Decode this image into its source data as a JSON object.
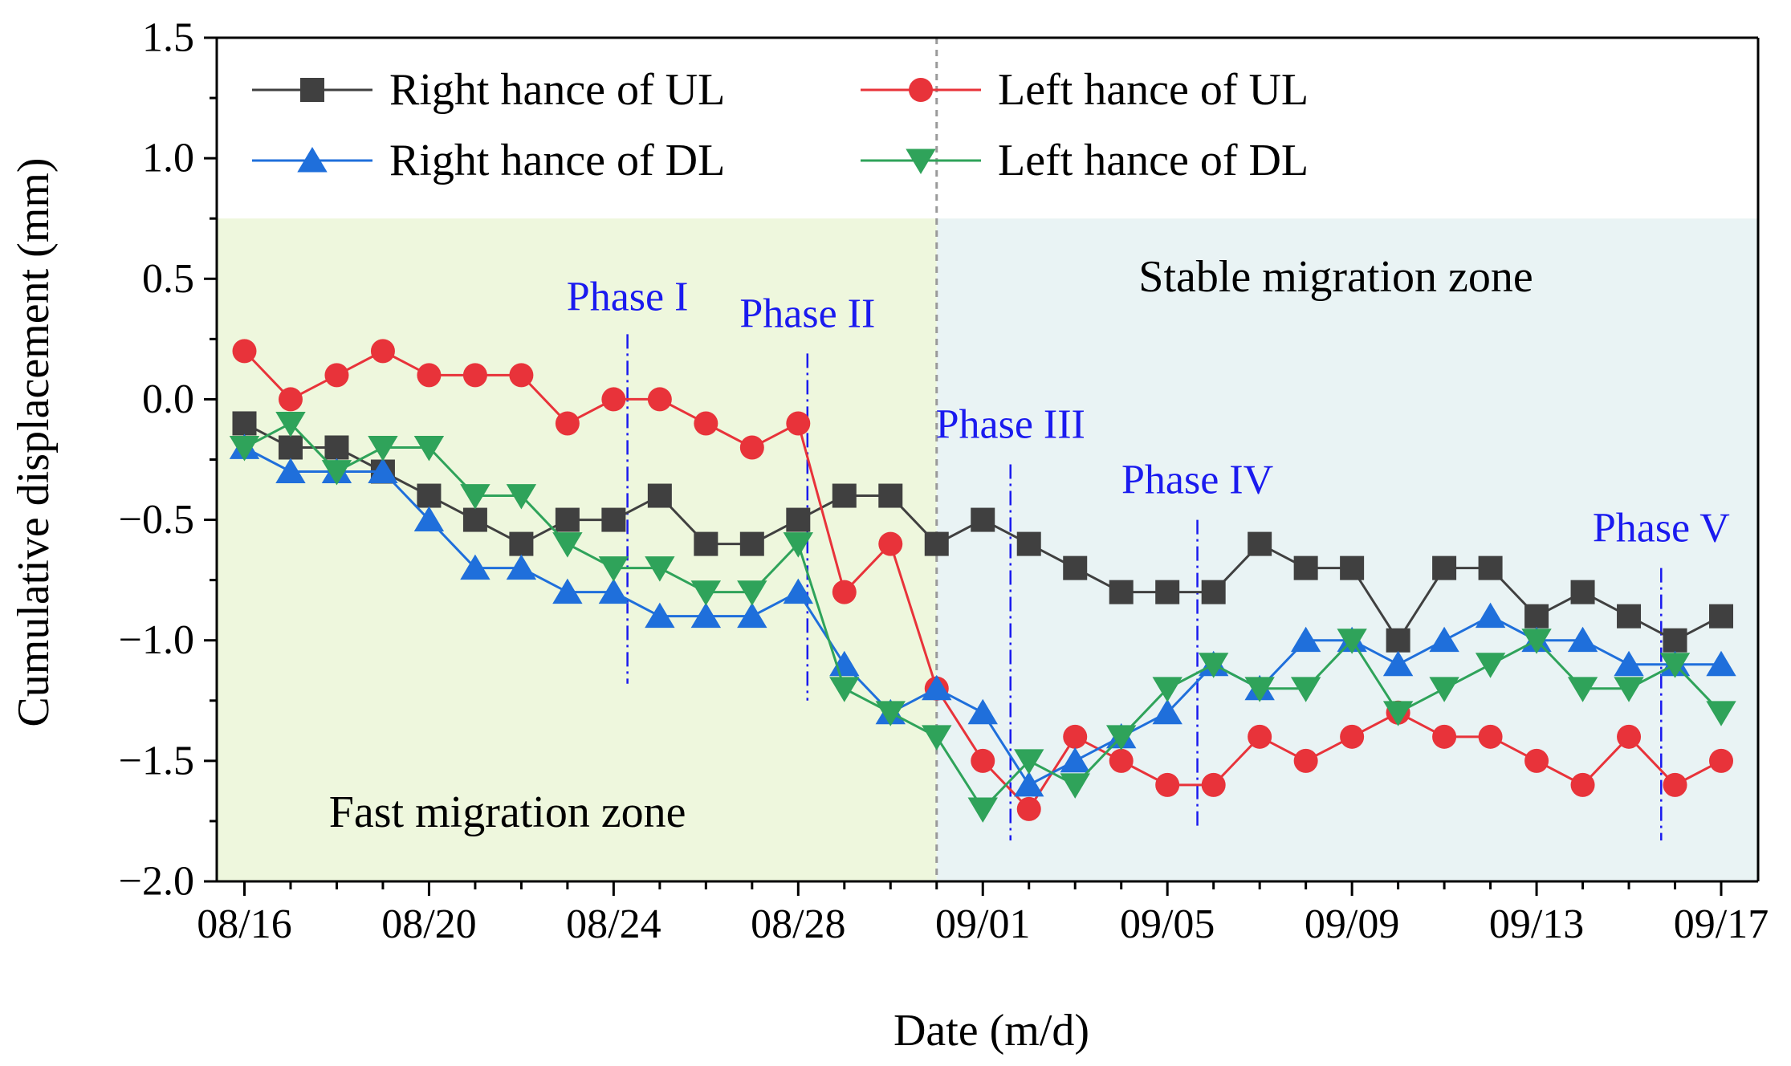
{
  "chart_data": {
    "type": "line",
    "xlabel": "Date (m/d)",
    "ylabel": "Cumulative displacement (mm)",
    "ylim": [
      -2.0,
      1.5
    ],
    "xlim": [
      -0.6,
      32.8
    ],
    "yticks": [
      -2.0,
      -1.5,
      -1.0,
      -0.5,
      0.0,
      0.5,
      1.0,
      1.5
    ],
    "ytick_labels": [
      "−2.0",
      "−1.5",
      "−1.0",
      "−0.5",
      "0.0",
      "0.5",
      "1.0",
      "1.5"
    ],
    "xticks": [
      0,
      4,
      8,
      12,
      16,
      20,
      24,
      28,
      32
    ],
    "xtick_labels": [
      "08/16",
      "08/20",
      "08/24",
      "08/28",
      "09/01",
      "09/05",
      "09/09",
      "09/13",
      "09/17"
    ],
    "x": [
      0,
      1,
      2,
      3,
      4,
      5,
      6,
      7,
      8,
      9,
      10,
      11,
      12,
      13,
      14,
      15,
      16,
      17,
      18,
      19,
      20,
      21,
      22,
      23,
      24,
      25,
      26,
      27,
      28,
      29,
      30,
      31,
      32
    ],
    "series": [
      {
        "name": "Right hance of UL",
        "color": "#404040",
        "marker": "square",
        "values": [
          -0.1,
          -0.2,
          -0.2,
          -0.3,
          -0.4,
          -0.5,
          -0.6,
          -0.5,
          -0.5,
          -0.4,
          -0.6,
          -0.6,
          -0.5,
          -0.4,
          -0.4,
          -0.6,
          -0.5,
          -0.6,
          -0.7,
          -0.8,
          -0.8,
          -0.8,
          -0.6,
          -0.7,
          -0.7,
          -1.0,
          -0.7,
          -0.7,
          -0.9,
          -0.8,
          -0.9,
          -1.0,
          -0.9
        ]
      },
      {
        "name": "Left hance of UL",
        "color": "#e8333a",
        "marker": "circle",
        "values": [
          0.2,
          0.0,
          0.1,
          0.2,
          0.1,
          0.1,
          0.1,
          -0.1,
          0.0,
          0.0,
          -0.1,
          -0.2,
          -0.1,
          -0.8,
          -0.6,
          -1.2,
          -1.5,
          -1.7,
          -1.4,
          -1.5,
          -1.6,
          -1.6,
          -1.4,
          -1.5,
          -1.4,
          -1.3,
          -1.4,
          -1.4,
          -1.5,
          -1.6,
          -1.4,
          -1.6,
          -1.5
        ]
      },
      {
        "name": "Right hance of DL",
        "color": "#1f6fdb",
        "marker": "triangle-up",
        "values": [
          -0.2,
          -0.3,
          -0.3,
          -0.3,
          -0.5,
          -0.7,
          -0.7,
          -0.8,
          -0.8,
          -0.9,
          -0.9,
          -0.9,
          -0.8,
          -1.1,
          -1.3,
          -1.2,
          -1.3,
          -1.6,
          -1.5,
          -1.4,
          -1.3,
          -1.1,
          -1.2,
          -1.0,
          -1.0,
          -1.1,
          -1.0,
          -0.9,
          -1.0,
          -1.0,
          -1.1,
          -1.1,
          -1.1
        ]
      },
      {
        "name": "Left hance of DL",
        "color": "#2fa35a",
        "marker": "triangle-down",
        "values": [
          -0.2,
          -0.1,
          -0.3,
          -0.2,
          -0.2,
          -0.4,
          -0.4,
          -0.6,
          -0.7,
          -0.7,
          -0.8,
          -0.8,
          -0.6,
          -1.2,
          -1.3,
          -1.4,
          -1.7,
          -1.5,
          -1.6,
          -1.4,
          -1.2,
          -1.1,
          -1.2,
          -1.2,
          -1.0,
          -1.3,
          -1.2,
          -1.1,
          -1.0,
          -1.2,
          -1.2,
          -1.1,
          -1.3
        ]
      }
    ],
    "zones": [
      {
        "label": "Fast migration zone",
        "x_from": -0.6,
        "x_to": 15.0,
        "y_top": 0.75,
        "color": "#eef7dd"
      },
      {
        "label": "Stable migration zone",
        "x_from": 15.0,
        "x_to": 32.8,
        "y_top": 0.75,
        "color": "#e9f3f4"
      }
    ],
    "zone_divider_x": 15.0,
    "phases": [
      {
        "label": "Phase I",
        "x": 8.3,
        "y_from": -1.18,
        "y_to": 0.27,
        "label_x": 8.3,
        "label_y": 0.37
      },
      {
        "label": "Phase II",
        "x": 12.2,
        "y_from": -1.25,
        "y_to": 0.19,
        "label_x": 12.2,
        "label_y": 0.3
      },
      {
        "label": "Phase III",
        "x": 16.6,
        "y_from": -1.83,
        "y_to": -0.27,
        "label_x": 16.6,
        "label_y": -0.16
      },
      {
        "label": "Phase IV",
        "x": 20.65,
        "y_from": -1.78,
        "y_to": -0.5,
        "label_x": 20.65,
        "label_y": -0.39
      },
      {
        "label": "Phase V",
        "x": 30.7,
        "y_from": -1.83,
        "y_to": -0.7,
        "label_x": 30.7,
        "label_y": -0.59
      }
    ],
    "phase_color": "#1a1aef",
    "legend": "top, two columns"
  }
}
